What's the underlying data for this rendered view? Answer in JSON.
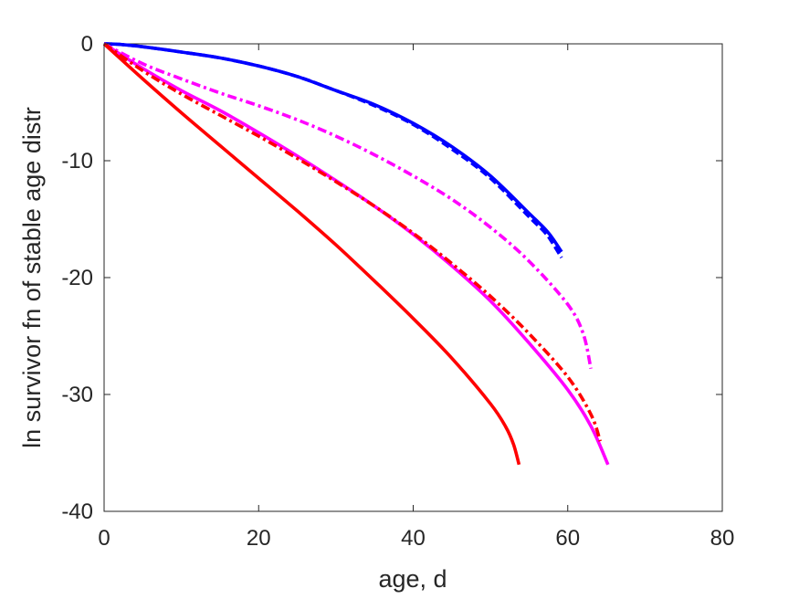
{
  "chart_data": {
    "type": "line",
    "title": "",
    "xlabel": "age, d",
    "ylabel": "ln survivor fn of stable age distr",
    "xlim": [
      0,
      80
    ],
    "ylim": [
      -40,
      0
    ],
    "xticks": [
      0,
      20,
      40,
      60,
      80
    ],
    "yticks": [
      0,
      -10,
      -20,
      -30,
      -40
    ],
    "xtick_labels": [
      "0",
      "20",
      "40",
      "60",
      "80"
    ],
    "ytick_labels": [
      "0",
      "-10",
      "-20",
      "-30",
      "-40"
    ],
    "grid": false,
    "legend": "none",
    "series": [
      {
        "color": "#0000ff",
        "style": "solid",
        "x": [
          0,
          2,
          5,
          10,
          15,
          20,
          25,
          30,
          35,
          40,
          45,
          50,
          55,
          57,
          58,
          59.2
        ],
        "y": [
          0,
          -0.05,
          -0.25,
          -0.7,
          -1.2,
          -1.9,
          -2.8,
          -4.0,
          -5.2,
          -6.8,
          -8.8,
          -11.3,
          -14.5,
          -15.8,
          -16.6,
          -17.8
        ]
      },
      {
        "color": "#0000ff",
        "style": "dashed",
        "x": [
          0,
          2,
          5,
          10,
          15,
          20,
          25,
          30,
          35,
          40,
          45,
          50,
          55,
          57,
          58,
          59.2
        ],
        "y": [
          0,
          -0.05,
          -0.25,
          -0.7,
          -1.2,
          -1.9,
          -2.8,
          -4.0,
          -5.3,
          -6.9,
          -9.0,
          -11.5,
          -14.8,
          -16.1,
          -17.0,
          -18.3
        ]
      },
      {
        "color": "#ff00ff",
        "style": "dashdot",
        "x": [
          0,
          5,
          10,
          15,
          20,
          25,
          30,
          35,
          40,
          45,
          50,
          55,
          60,
          62,
          63
        ],
        "y": [
          0,
          -1.7,
          -3.0,
          -4.2,
          -5.3,
          -6.5,
          -7.9,
          -9.5,
          -11.3,
          -13.3,
          -15.7,
          -18.6,
          -22.3,
          -24.8,
          -27.8
        ]
      },
      {
        "color": "#ff00ff",
        "style": "solid",
        "x": [
          0,
          5,
          10,
          15,
          20,
          25,
          30,
          35,
          40,
          45,
          50,
          55,
          60,
          63,
          65.2
        ],
        "y": [
          0,
          -2.1,
          -4.0,
          -5.7,
          -7.6,
          -9.6,
          -11.7,
          -13.9,
          -16.3,
          -19.0,
          -22.0,
          -25.6,
          -29.6,
          -32.7,
          -36.0
        ]
      },
      {
        "color": "#ff0000",
        "style": "dashdot",
        "x": [
          0,
          5,
          10,
          15,
          20,
          25,
          30,
          35,
          40,
          45,
          50,
          55,
          60,
          63,
          64.2
        ],
        "y": [
          0,
          -2.3,
          -4.3,
          -6.1,
          -7.9,
          -9.8,
          -11.8,
          -13.9,
          -16.2,
          -18.8,
          -21.6,
          -24.8,
          -28.5,
          -31.7,
          -34.0
        ]
      },
      {
        "color": "#ff0000",
        "style": "solid",
        "x": [
          0,
          5,
          10,
          15,
          20,
          25,
          30,
          35,
          40,
          45,
          50,
          52,
          53,
          53.7
        ],
        "y": [
          0,
          -3.0,
          -5.9,
          -8.7,
          -11.5,
          -14.3,
          -17.2,
          -20.3,
          -23.5,
          -26.9,
          -30.8,
          -32.8,
          -34.3,
          -36.0
        ]
      }
    ]
  }
}
